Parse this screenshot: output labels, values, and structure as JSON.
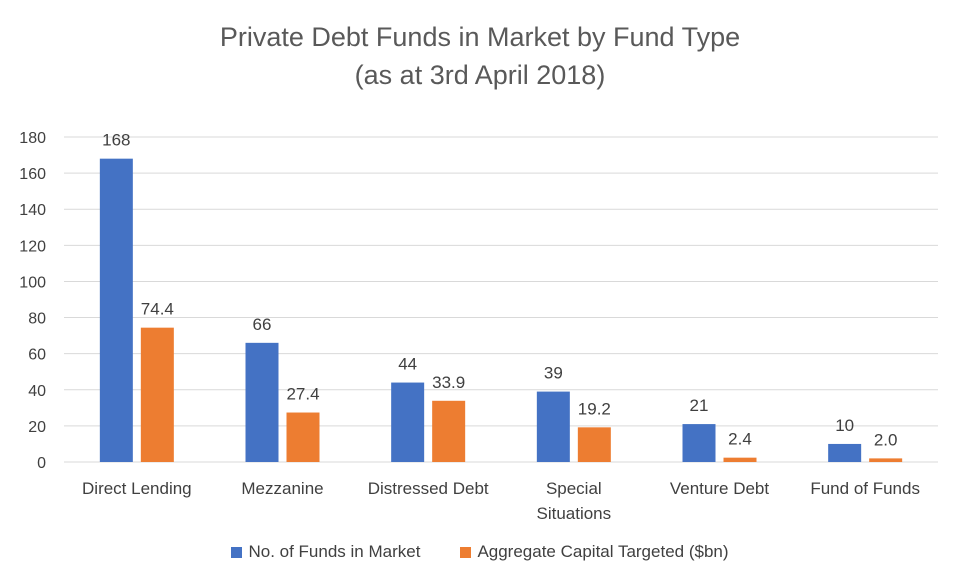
{
  "chart_data": {
    "type": "bar",
    "title_line1": "Private Debt Funds in Market by Fund Type",
    "title_line2": "(as at 3rd April 2018)",
    "categories": [
      [
        "Direct Lending"
      ],
      [
        "Mezzanine"
      ],
      [
        "Distressed Debt"
      ],
      [
        "Special",
        "Situations"
      ],
      [
        "Venture Debt"
      ],
      [
        "Fund of Funds"
      ]
    ],
    "series": [
      {
        "name": "No. of Funds in Market",
        "color": "#4472C4",
        "values": [
          168,
          66,
          44,
          39,
          21,
          10
        ],
        "labels": [
          "168",
          "66",
          "44",
          "39",
          "21",
          "10"
        ]
      },
      {
        "name": "Aggregate Capital Targeted ($bn)",
        "color": "#ED7D31",
        "values": [
          74.4,
          27.4,
          33.9,
          19.2,
          2.4,
          2.0
        ],
        "labels": [
          "74.4",
          "27.4",
          "33.9",
          "19.2",
          "2.4",
          "2.0"
        ]
      }
    ],
    "ylim": [
      0,
      180
    ],
    "yticks": [
      0,
      20,
      40,
      60,
      80,
      100,
      120,
      140,
      160,
      180
    ],
    "grid": true,
    "legend": "bottom"
  }
}
